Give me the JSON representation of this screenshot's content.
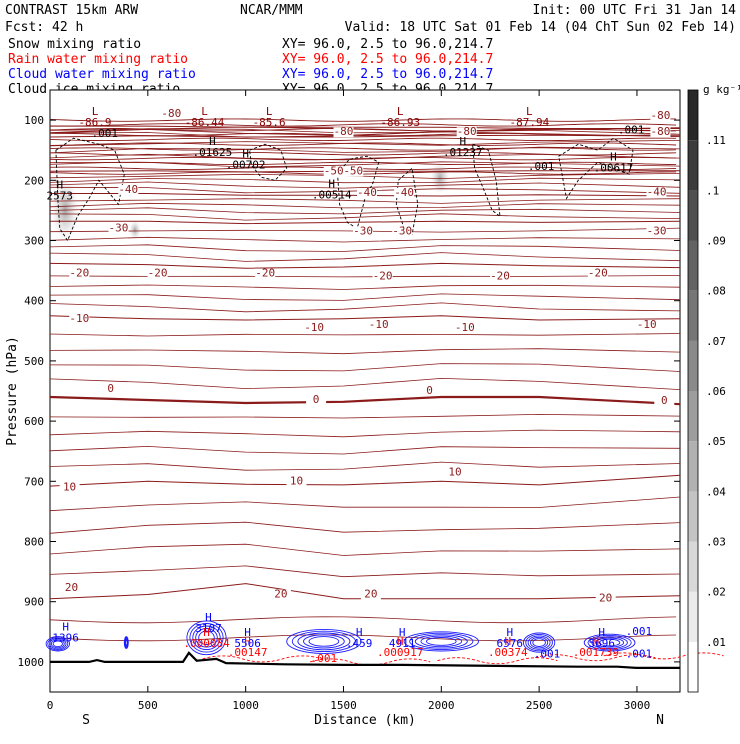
{
  "header": {
    "model": "CONTRAST 15km ARW",
    "center": "NCAR/MMM",
    "init": "Init: 00 UTC Fri 31 Jan 14",
    "fcst_label": "Fcst:",
    "fcst_value": "42 h",
    "valid": "Valid: 18 UTC Sat 01 Feb 14 (04 ChT Sun 02 Feb 14)"
  },
  "fields": [
    {
      "name": "Snow mixing ratio",
      "color": "#000000",
      "xy": "XY=  96.0,  2.5 to  96.0,214.7"
    },
    {
      "name": "Rain water mixing ratio",
      "color": "#ff0000",
      "xy": "XY=  96.0,  2.5 to  96.0,214.7"
    },
    {
      "name": "Cloud water mixing ratio",
      "color": "#0000ff",
      "xy": "XY=  96.0,  2.5 to  96.0,214.7"
    },
    {
      "name": "Cloud ice mixing ratio",
      "color": "#000000",
      "xy": "XY=  96.0,  2.5 to  96.0,214.7"
    }
  ],
  "chart_data": {
    "type": "cross-section",
    "xlabel": "Distance (km)",
    "ylabel": "Pressure (hPa)",
    "xlim": [
      0,
      3220
    ],
    "ylim": [
      1050,
      50
    ],
    "xticks": [
      0,
      500,
      1000,
      1500,
      2000,
      2500,
      3000
    ],
    "yticks": [
      100,
      200,
      300,
      400,
      500,
      600,
      700,
      800,
      900,
      1000
    ],
    "endpoint_labels": {
      "left": "S",
      "right": "N"
    },
    "colorbar": {
      "unit": "g kg⁻¹",
      "ticks": [
        ".01",
        ".02",
        ".03",
        ".04",
        ".05",
        ".06",
        ".07",
        ".08",
        ".09",
        ".1",
        ".11"
      ]
    },
    "isotherms": [
      {
        "label": "-80",
        "p": [
          110,
          110,
          112,
          112,
          112,
          114,
          114
        ],
        "x": [
          0,
          500,
          1000,
          1500,
          2000,
          2500,
          3220
        ]
      },
      {
        "label": "-80",
        "p": [
          128,
          126,
          128,
          128,
          126,
          125,
          126
        ],
        "x": [
          0,
          500,
          1000,
          1500,
          2000,
          2500,
          3220
        ]
      },
      {
        "label": "-50",
        "p": [
          185,
          184,
          186,
          185,
          185,
          184,
          184
        ],
        "x": [
          0,
          500,
          1000,
          1500,
          2000,
          2500,
          3220
        ]
      },
      {
        "label": "-40",
        "p": [
          222,
          222,
          225,
          225,
          226,
          224,
          226
        ],
        "x": [
          0,
          500,
          1000,
          1500,
          2000,
          2500,
          3220
        ]
      },
      {
        "label": "-30",
        "p": [
          268,
          268,
          272,
          270,
          268,
          270,
          268
        ],
        "x": [
          0,
          500,
          1000,
          1500,
          2000,
          2500,
          3220
        ]
      },
      {
        "label": "-20",
        "p": [
          338,
          340,
          346,
          344,
          338,
          342,
          345
        ],
        "x": [
          0,
          500,
          1000,
          1500,
          2000,
          2500,
          3220
        ]
      },
      {
        "label": "-10",
        "p": [
          425,
          430,
          432,
          430,
          425,
          432,
          430
        ],
        "x": [
          0,
          500,
          1000,
          1500,
          2000,
          2500,
          3220
        ]
      },
      {
        "label": "0",
        "p": [
          560,
          565,
          570,
          568,
          560,
          560,
          572
        ],
        "x": [
          0,
          500,
          1000,
          1500,
          2000,
          2500,
          3220
        ]
      },
      {
        "label": "10",
        "p": [
          708,
          700,
          705,
          706,
          700,
          706,
          690
        ],
        "x": [
          0,
          500,
          1000,
          1500,
          2000,
          2500,
          3220
        ]
      },
      {
        "label": "20",
        "p": [
          895,
          888,
          870,
          895,
          895,
          895,
          890
        ],
        "x": [
          0,
          500,
          1000,
          1500,
          2000,
          2500,
          3220
        ]
      }
    ],
    "isotherm_labels": [
      {
        "text": "-80",
        "x": 620,
        "p": 95
      },
      {
        "text": "-80",
        "x": 1500,
        "p": 125
      },
      {
        "text": "-80",
        "x": 2130,
        "p": 125
      },
      {
        "text": "-80",
        "x": 3120,
        "p": 98
      },
      {
        "text": "-80",
        "x": 3120,
        "p": 125
      },
      {
        "text": "-50",
        "x": 1450,
        "p": 190
      },
      {
        "text": "-50",
        "x": 1550,
        "p": 190
      },
      {
        "text": "-40",
        "x": 400,
        "p": 221
      },
      {
        "text": "-40",
        "x": 1620,
        "p": 226
      },
      {
        "text": "-40",
        "x": 1810,
        "p": 226
      },
      {
        "text": "-40",
        "x": 3100,
        "p": 225
      },
      {
        "text": "-30",
        "x": 350,
        "p": 285
      },
      {
        "text": "-30",
        "x": 1600,
        "p": 290
      },
      {
        "text": "-30",
        "x": 1800,
        "p": 290
      },
      {
        "text": "-30",
        "x": 3100,
        "p": 290
      },
      {
        "text": "-20",
        "x": 150,
        "p": 360
      },
      {
        "text": "-20",
        "x": 550,
        "p": 360
      },
      {
        "text": "-20",
        "x": 1100,
        "p": 360
      },
      {
        "text": "-20",
        "x": 1700,
        "p": 365
      },
      {
        "text": "-20",
        "x": 2300,
        "p": 365
      },
      {
        "text": "-20",
        "x": 2800,
        "p": 360
      },
      {
        "text": "-10",
        "x": 150,
        "p": 435
      },
      {
        "text": "-10",
        "x": 1350,
        "p": 450
      },
      {
        "text": "-10",
        "x": 1680,
        "p": 445
      },
      {
        "text": "-10",
        "x": 2120,
        "p": 450
      },
      {
        "text": "-10",
        "x": 3050,
        "p": 445
      },
      {
        "text": "0",
        "x": 310,
        "p": 552
      },
      {
        "text": "0",
        "x": 1360,
        "p": 570
      },
      {
        "text": "0",
        "x": 1940,
        "p": 555
      },
      {
        "text": "0",
        "x": 3140,
        "p": 572
      },
      {
        "text": "10",
        "x": 100,
        "p": 715
      },
      {
        "text": "10",
        "x": 1260,
        "p": 705
      },
      {
        "text": "10",
        "x": 2070,
        "p": 690
      },
      {
        "text": "20",
        "x": 110,
        "p": 882
      },
      {
        "text": "20",
        "x": 1180,
        "p": 893
      },
      {
        "text": "20",
        "x": 1640,
        "p": 893
      },
      {
        "text": "20",
        "x": 2840,
        "p": 900
      }
    ],
    "extrema": [
      {
        "kind": "L",
        "value": "-86.9",
        "x": 230,
        "p": 110,
        "color": "#880000"
      },
      {
        "kind": "L",
        "value": "-86.44",
        "x": 790,
        "p": 110,
        "color": "#880000"
      },
      {
        "kind": "L",
        "value": "-85.6",
        "x": 1120,
        "p": 110,
        "color": "#880000"
      },
      {
        "kind": "L",
        "value": "-86.93",
        "x": 1790,
        "p": 110,
        "color": "#880000"
      },
      {
        "kind": "L",
        "value": "-87.94",
        "x": 2450,
        "p": 110,
        "color": "#880000"
      },
      {
        "kind": "H",
        "value": ".01625",
        "x": 830,
        "p": 160,
        "color": "#000000"
      },
      {
        "kind": "H",
        "value": ".00702",
        "x": 1000,
        "p": 180,
        "color": "#000000"
      },
      {
        "kind": "H",
        "value": ".00514",
        "x": 1440,
        "p": 230,
        "color": "#000000"
      },
      {
        "kind": "H",
        "value": ".01237",
        "x": 2110,
        "p": 160,
        "color": "#000000"
      },
      {
        "kind": "H",
        "value": ".00617",
        "x": 2880,
        "p": 185,
        "color": "#000000"
      },
      {
        "kind": "H",
        "value": "2573",
        "x": 50,
        "p": 232,
        "color": "#000000"
      },
      {
        "kind": "H",
        "value": "1396",
        "x": 80,
        "p": 966,
        "color": "#0000ff"
      },
      {
        "kind": "H",
        "value": "3107",
        "x": 810,
        "p": 950,
        "color": "#0000ff"
      },
      {
        "kind": "H",
        "value": ".000084",
        "x": 800,
        "p": 975,
        "color": "#ff0000"
      },
      {
        "kind": "H",
        "value": "5506",
        "x": 1010,
        "p": 975,
        "color": "#0000ff"
      },
      {
        "kind": "H",
        "value": ".00147",
        "x": 1010,
        "p": 990,
        "color": "#ff0000"
      },
      {
        "kind": "H",
        "value": ".459",
        "x": 1580,
        "p": 975,
        "color": "#0000ff"
      },
      {
        "kind": "H",
        "value": "4911",
        "x": 1800,
        "p": 975,
        "color": "#0000ff"
      },
      {
        "kind": "H",
        "value": ".000917",
        "x": 1790,
        "p": 990,
        "color": "#ff0000"
      },
      {
        "kind": "H",
        "value": "6576",
        "x": 2350,
        "p": 975,
        "color": "#0000ff"
      },
      {
        "kind": "H",
        "value": ".00374",
        "x": 2340,
        "p": 990,
        "color": "#ff0000"
      },
      {
        "kind": "H",
        "value": "5696",
        "x": 2820,
        "p": 975,
        "color": "#0000ff"
      },
      {
        "kind": "H",
        "value": ".001739",
        "x": 2790,
        "p": 990,
        "color": "#ff0000"
      }
    ],
    "small_labels": [
      {
        "text": ".001",
        "x": 280,
        "p": 128,
        "color": "#000000"
      },
      {
        "text": ".001",
        "x": 2510,
        "p": 183,
        "color": "#000000"
      },
      {
        "text": ".001",
        "x": 2970,
        "p": 122,
        "color": "#000000"
      },
      {
        "text": ".001",
        "x": 3010,
        "p": 955,
        "color": "#0000ff"
      },
      {
        "text": ".001",
        "x": 3010,
        "p": 993,
        "color": "#0000ff"
      },
      {
        "text": ".001",
        "x": 1400,
        "p": 1000,
        "color": "#ff0000"
      },
      {
        "text": ".001",
        "x": 2540,
        "p": 993,
        "color": "#0000ff"
      }
    ],
    "terrain_p": [
      1000,
      1000,
      997,
      1000,
      1000,
      1000,
      1000,
      985,
      998,
      995,
      1002,
      1004,
      1005,
      1005,
      1006,
      1007,
      1008,
      1008,
      1010,
      1010,
      1010
    ],
    "terrain_x": [
      0,
      200,
      240,
      280,
      500,
      650,
      680,
      710,
      750,
      850,
      900,
      1200,
      1500,
      1800,
      2100,
      2400,
      2700,
      2900,
      3000,
      3100,
      3220
    ]
  }
}
